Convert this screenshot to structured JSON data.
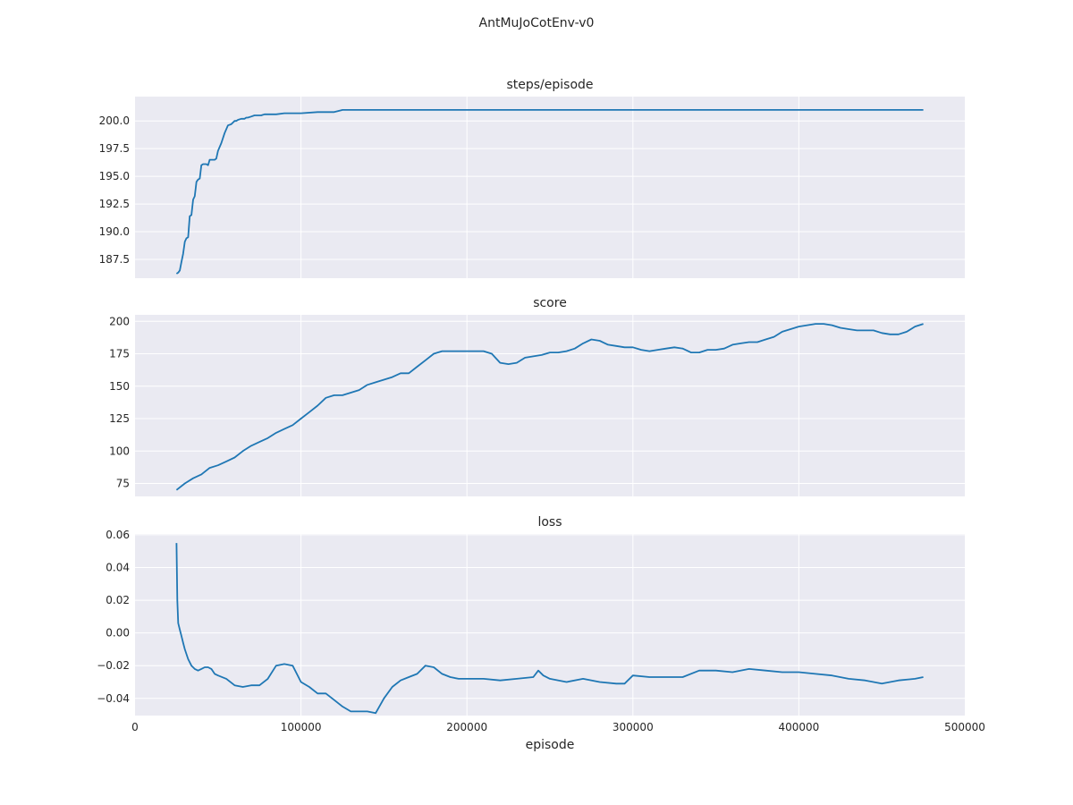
{
  "figure": {
    "title": "AntMuJoCotEnv-v0",
    "line_color": "#1f77b4",
    "axes_bg": "#eaeaf2",
    "grid_color": "#ffffff"
  },
  "chart_data": [
    {
      "type": "line",
      "title": "steps/episode",
      "xlabel": "",
      "ylabel": "",
      "xlim": [
        0,
        500000
      ],
      "ylim": [
        185.8,
        202.2
      ],
      "xticks": [
        0,
        100000,
        200000,
        300000,
        400000,
        500000
      ],
      "xtick_labels_visible": false,
      "yticks": [
        187.5,
        190.0,
        192.5,
        195.0,
        197.5,
        200.0
      ],
      "ytick_labels": [
        "187.5",
        "190.0",
        "192.5",
        "195.0",
        "197.5",
        "200.0"
      ],
      "grid": true,
      "series": [
        {
          "x": [
            25000,
            26000,
            27000,
            28000,
            29000,
            30000,
            31000,
            32000,
            33000,
            34000,
            35000,
            36000,
            37000,
            38000,
            39000,
            40000,
            41000,
            42000,
            43000,
            44000,
            45000,
            46000,
            47000,
            48000,
            49000,
            50000,
            52000,
            54000,
            56000,
            58000,
            60000,
            61000,
            62000,
            64000,
            66000,
            67000,
            68000,
            70000,
            72000,
            74000,
            76000,
            78000,
            80000,
            85000,
            90000,
            95000,
            100000,
            110000,
            115000,
            120000,
            125000,
            126000,
            130000,
            150000,
            200000,
            250000,
            280000,
            300000,
            330000,
            350000,
            400000,
            450000,
            475000
          ],
          "y": [
            186.2,
            186.3,
            186.5,
            187.3,
            188.0,
            189.1,
            189.4,
            189.5,
            191.4,
            191.5,
            192.9,
            193.2,
            194.5,
            194.7,
            194.8,
            196.0,
            196.1,
            196.1,
            196.1,
            196.0,
            196.5,
            196.5,
            196.5,
            196.5,
            196.6,
            197.3,
            198.0,
            198.9,
            199.6,
            199.7,
            200.0,
            200.0,
            200.1,
            200.2,
            200.2,
            200.3,
            200.3,
            200.4,
            200.5,
            200.5,
            200.5,
            200.6,
            200.6,
            200.6,
            200.7,
            200.7,
            200.7,
            200.8,
            200.8,
            200.8,
            201.0,
            201.0,
            201.0,
            201.0,
            201.0,
            201.0,
            201.0,
            201.0,
            201.0,
            201.0,
            201.0,
            201.0,
            201.0
          ]
        }
      ]
    },
    {
      "type": "line",
      "title": "score",
      "xlabel": "",
      "ylabel": "",
      "xlim": [
        0,
        500000
      ],
      "ylim": [
        65,
        205
      ],
      "xticks": [
        0,
        100000,
        200000,
        300000,
        400000,
        500000
      ],
      "xtick_labels_visible": false,
      "yticks": [
        75,
        100,
        125,
        150,
        175,
        200
      ],
      "ytick_labels": [
        "75",
        "100",
        "125",
        "150",
        "175",
        "200"
      ],
      "grid": true,
      "series": [
        {
          "x": [
            25000,
            30000,
            35000,
            40000,
            45000,
            50000,
            55000,
            60000,
            65000,
            70000,
            75000,
            80000,
            85000,
            90000,
            95000,
            100000,
            105000,
            110000,
            115000,
            120000,
            125000,
            130000,
            135000,
            140000,
            145000,
            150000,
            155000,
            160000,
            165000,
            170000,
            175000,
            180000,
            185000,
            190000,
            195000,
            200000,
            205000,
            210000,
            215000,
            220000,
            225000,
            230000,
            235000,
            240000,
            245000,
            250000,
            255000,
            260000,
            265000,
            270000,
            275000,
            280000,
            285000,
            290000,
            295000,
            300000,
            305000,
            310000,
            315000,
            320000,
            325000,
            330000,
            335000,
            340000,
            345000,
            350000,
            355000,
            360000,
            365000,
            370000,
            375000,
            380000,
            385000,
            390000,
            395000,
            400000,
            405000,
            410000,
            415000,
            420000,
            425000,
            430000,
            435000,
            440000,
            445000,
            450000,
            455000,
            460000,
            465000,
            470000,
            475000
          ],
          "y": [
            70,
            75,
            79,
            82,
            87,
            89,
            92,
            95,
            100,
            104,
            107,
            110,
            114,
            117,
            120,
            125,
            130,
            135,
            141,
            143,
            143,
            145,
            147,
            151,
            153,
            155,
            157,
            160,
            160,
            165,
            170,
            175,
            177,
            177,
            177,
            177,
            177,
            177,
            175,
            168,
            167,
            168,
            172,
            173,
            174,
            176,
            176,
            177,
            179,
            183,
            186,
            185,
            182,
            181,
            180,
            180,
            178,
            177,
            178,
            179,
            180,
            179,
            176,
            176,
            178,
            178,
            179,
            182,
            183,
            184,
            184,
            186,
            188,
            192,
            194,
            196,
            197,
            198,
            198,
            197,
            195,
            194,
            193,
            193,
            193,
            191,
            190,
            190,
            192,
            196,
            198
          ]
        }
      ]
    },
    {
      "type": "line",
      "title": "loss",
      "xlabel": "episode",
      "ylabel": "",
      "xlim": [
        0,
        500000
      ],
      "ylim": [
        -0.0505,
        0.0605
      ],
      "xticks": [
        0,
        100000,
        200000,
        300000,
        400000,
        500000
      ],
      "xtick_labels": [
        "0",
        "100000",
        "200000",
        "300000",
        "400000",
        "500000"
      ],
      "yticks": [
        -0.04,
        -0.02,
        0.0,
        0.02,
        0.04,
        0.06
      ],
      "ytick_labels": [
        "−0.04",
        "−0.02",
        "0.00",
        "0.02",
        "0.04",
        "0.06"
      ],
      "grid": true,
      "series": [
        {
          "x": [
            25000,
            25500,
            26000,
            27000,
            28000,
            29000,
            30000,
            32000,
            34000,
            36000,
            38000,
            40000,
            42000,
            44000,
            46000,
            48000,
            50000,
            55000,
            60000,
            65000,
            70000,
            75000,
            80000,
            85000,
            90000,
            95000,
            100000,
            105000,
            110000,
            115000,
            120000,
            125000,
            130000,
            135000,
            140000,
            145000,
            150000,
            155000,
            160000,
            165000,
            170000,
            175000,
            180000,
            185000,
            190000,
            195000,
            200000,
            210000,
            220000,
            230000,
            240000,
            243000,
            246000,
            250000,
            260000,
            270000,
            280000,
            290000,
            295000,
            300000,
            310000,
            320000,
            330000,
            340000,
            350000,
            360000,
            370000,
            380000,
            390000,
            400000,
            410000,
            420000,
            430000,
            440000,
            450000,
            460000,
            470000,
            475000
          ],
          "y": [
            0.055,
            0.02,
            0.006,
            0.002,
            -0.002,
            -0.006,
            -0.01,
            -0.016,
            -0.02,
            -0.022,
            -0.023,
            -0.022,
            -0.021,
            -0.021,
            -0.022,
            -0.025,
            -0.026,
            -0.028,
            -0.032,
            -0.033,
            -0.032,
            -0.032,
            -0.028,
            -0.02,
            -0.019,
            -0.02,
            -0.03,
            -0.033,
            -0.037,
            -0.037,
            -0.041,
            -0.045,
            -0.048,
            -0.048,
            -0.048,
            -0.049,
            -0.04,
            -0.033,
            -0.029,
            -0.027,
            -0.025,
            -0.02,
            -0.021,
            -0.025,
            -0.027,
            -0.028,
            -0.028,
            -0.028,
            -0.029,
            -0.028,
            -0.027,
            -0.023,
            -0.026,
            -0.028,
            -0.03,
            -0.028,
            -0.03,
            -0.031,
            -0.031,
            -0.026,
            -0.027,
            -0.027,
            -0.027,
            -0.023,
            -0.023,
            -0.024,
            -0.022,
            -0.023,
            -0.024,
            -0.024,
            -0.025,
            -0.026,
            -0.028,
            -0.029,
            -0.031,
            -0.029,
            -0.028,
            -0.027
          ]
        }
      ]
    }
  ]
}
